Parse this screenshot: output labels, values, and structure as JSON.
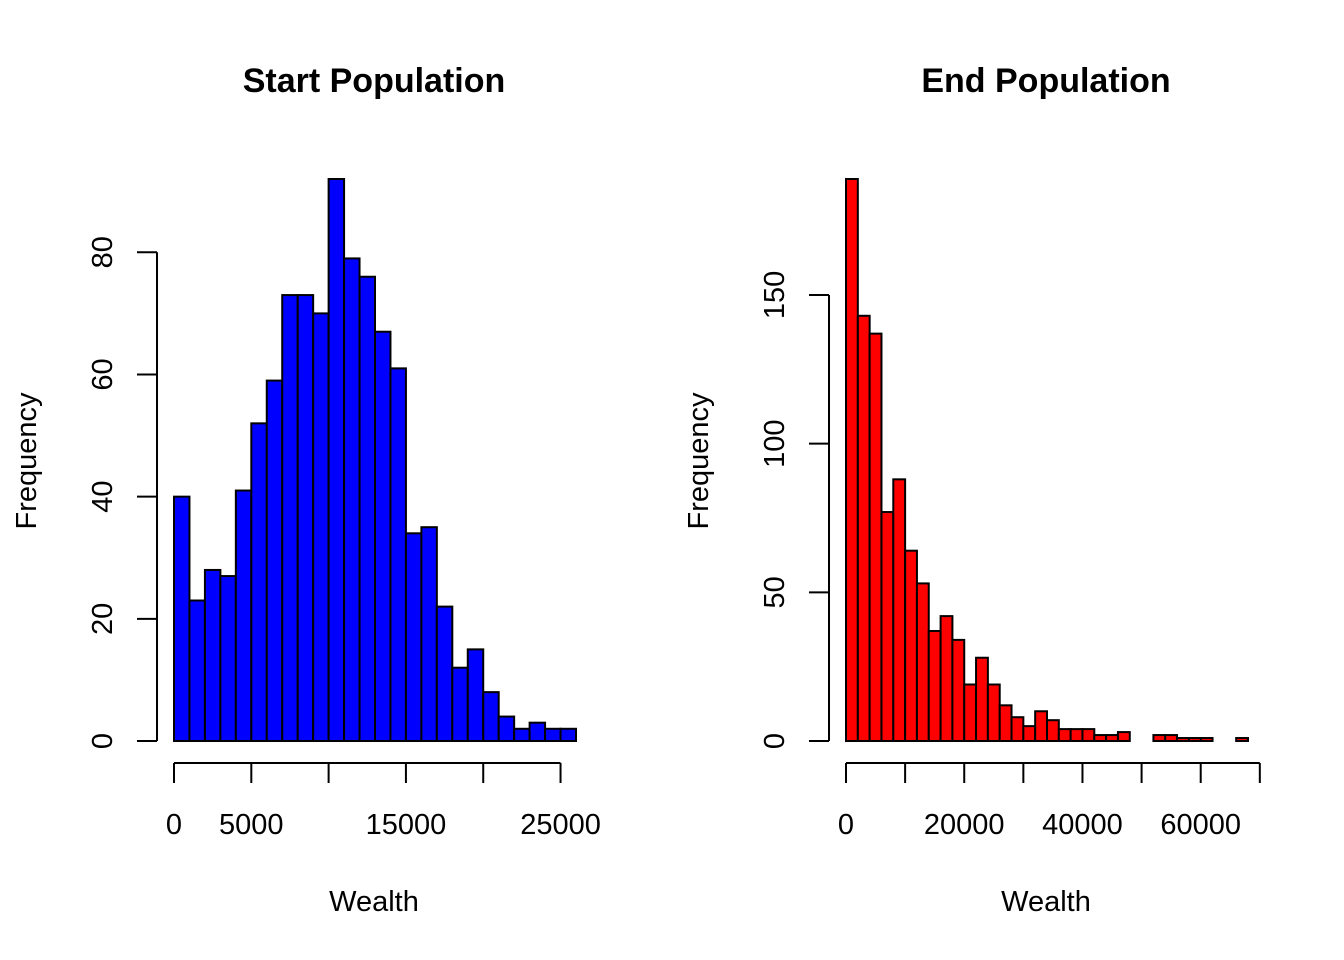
{
  "chart_data": [
    {
      "type": "bar",
      "title": "Start Population",
      "xlabel": "Wealth",
      "ylabel": "Frequency",
      "bar_color": "#0000ff",
      "border_color": "#000000",
      "xlim": [
        0,
        26000
      ],
      "ylim": [
        0,
        92
      ],
      "x_ticks": [
        0,
        5000,
        10000,
        15000,
        20000,
        25000
      ],
      "x_tick_labels": [
        "0",
        "5000",
        "",
        "15000",
        "",
        "25000"
      ],
      "y_ticks": [
        0,
        20,
        40,
        60,
        80
      ],
      "y_tick_labels": [
        "0",
        "20",
        "40",
        "60",
        "80"
      ],
      "bin_width": 1000,
      "bin_starts": [
        0,
        1000,
        2000,
        3000,
        4000,
        5000,
        6000,
        7000,
        8000,
        9000,
        10000,
        11000,
        12000,
        13000,
        14000,
        15000,
        16000,
        17000,
        18000,
        19000,
        20000,
        21000,
        22000,
        23000,
        24000,
        25000
      ],
      "values": [
        40,
        23,
        28,
        27,
        41,
        52,
        59,
        73,
        73,
        70,
        92,
        79,
        76,
        67,
        61,
        34,
        35,
        22,
        12,
        15,
        8,
        4,
        2,
        3,
        2,
        2
      ],
      "grid": false,
      "legend": "none"
    },
    {
      "type": "bar",
      "title": "End Population",
      "xlabel": "Wealth",
      "ylabel": "Frequency",
      "bar_color": "#ff0000",
      "border_color": "#000000",
      "xlim": [
        0,
        68000
      ],
      "ylim": [
        0,
        189
      ],
      "x_ticks": [
        0,
        10000,
        20000,
        30000,
        40000,
        50000,
        60000,
        70000
      ],
      "x_tick_labels": [
        "0",
        "",
        "20000",
        "",
        "40000",
        "",
        "60000",
        ""
      ],
      "y_ticks": [
        0,
        50,
        100,
        150
      ],
      "y_tick_labels": [
        "0",
        "50",
        "100",
        "150"
      ],
      "bin_width": 2000,
      "bin_starts": [
        0,
        2000,
        4000,
        6000,
        8000,
        10000,
        12000,
        14000,
        16000,
        18000,
        20000,
        22000,
        24000,
        26000,
        28000,
        30000,
        32000,
        34000,
        36000,
        38000,
        40000,
        42000,
        44000,
        46000,
        48000,
        50000,
        52000,
        54000,
        56000,
        58000,
        60000,
        62000,
        64000,
        66000
      ],
      "values": [
        189,
        143,
        137,
        77,
        88,
        64,
        53,
        37,
        42,
        34,
        19,
        28,
        19,
        12,
        8,
        5,
        10,
        7,
        4,
        4,
        4,
        2,
        2,
        3,
        0,
        0,
        2,
        2,
        1,
        1,
        1,
        0,
        0,
        1
      ],
      "grid": false,
      "legend": "none"
    }
  ]
}
